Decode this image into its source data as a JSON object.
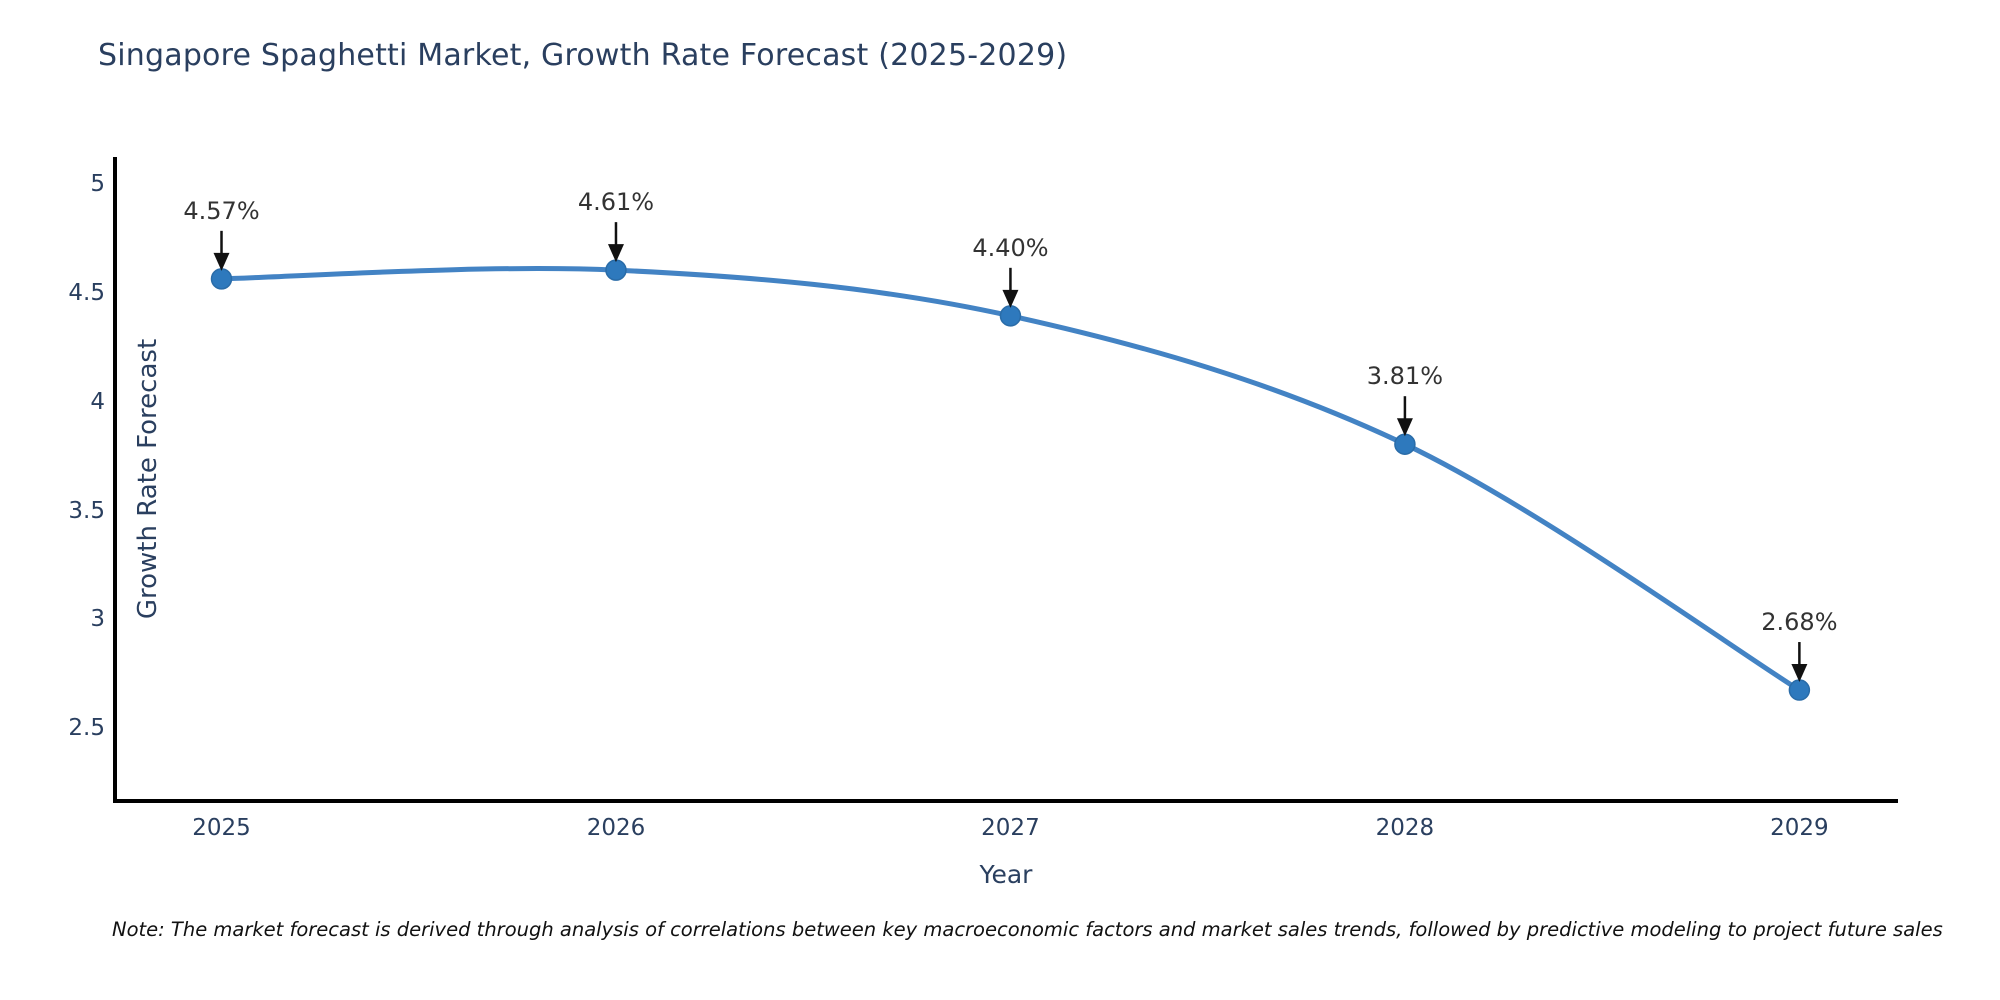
{
  "chart_data": {
    "type": "line",
    "title": "Singapore Spaghetti Market, Growth Rate Forecast (2025-2029)",
    "xlabel": "Year",
    "ylabel": "Growth Rate Forecast",
    "x": [
      2025,
      2026,
      2027,
      2028,
      2029
    ],
    "series": [
      {
        "name": "Growth Rate Forecast",
        "values": [
          4.57,
          4.61,
          4.4,
          3.81,
          2.68
        ]
      }
    ],
    "point_labels": [
      "4.57%",
      "4.61%",
      "4.40%",
      "3.81%",
      "2.68%"
    ],
    "xticks": [
      "2025",
      "2026",
      "2027",
      "2028",
      "2029"
    ],
    "yticks": [
      2.5,
      3,
      3.5,
      4,
      4.5,
      5
    ],
    "xlim": [
      2024.73,
      2029.25
    ],
    "ylim": [
      2.17,
      5.13
    ],
    "grid": false,
    "legend": "none",
    "line_shape": "spline",
    "annotations_have_arrows": true,
    "note": "Note: The market forecast is derived through analysis of correlations between key macroeconomic factors and market sales trends, followed by predictive modeling to project future sales",
    "colors": {
      "line": "#4383c4",
      "marker": "#2e79bd",
      "marker_edge": "#2a6ca8",
      "arrow": "#111111",
      "axis": "#000000",
      "label_text": "#2a3f5f",
      "annotation_text": "#333333"
    }
  }
}
